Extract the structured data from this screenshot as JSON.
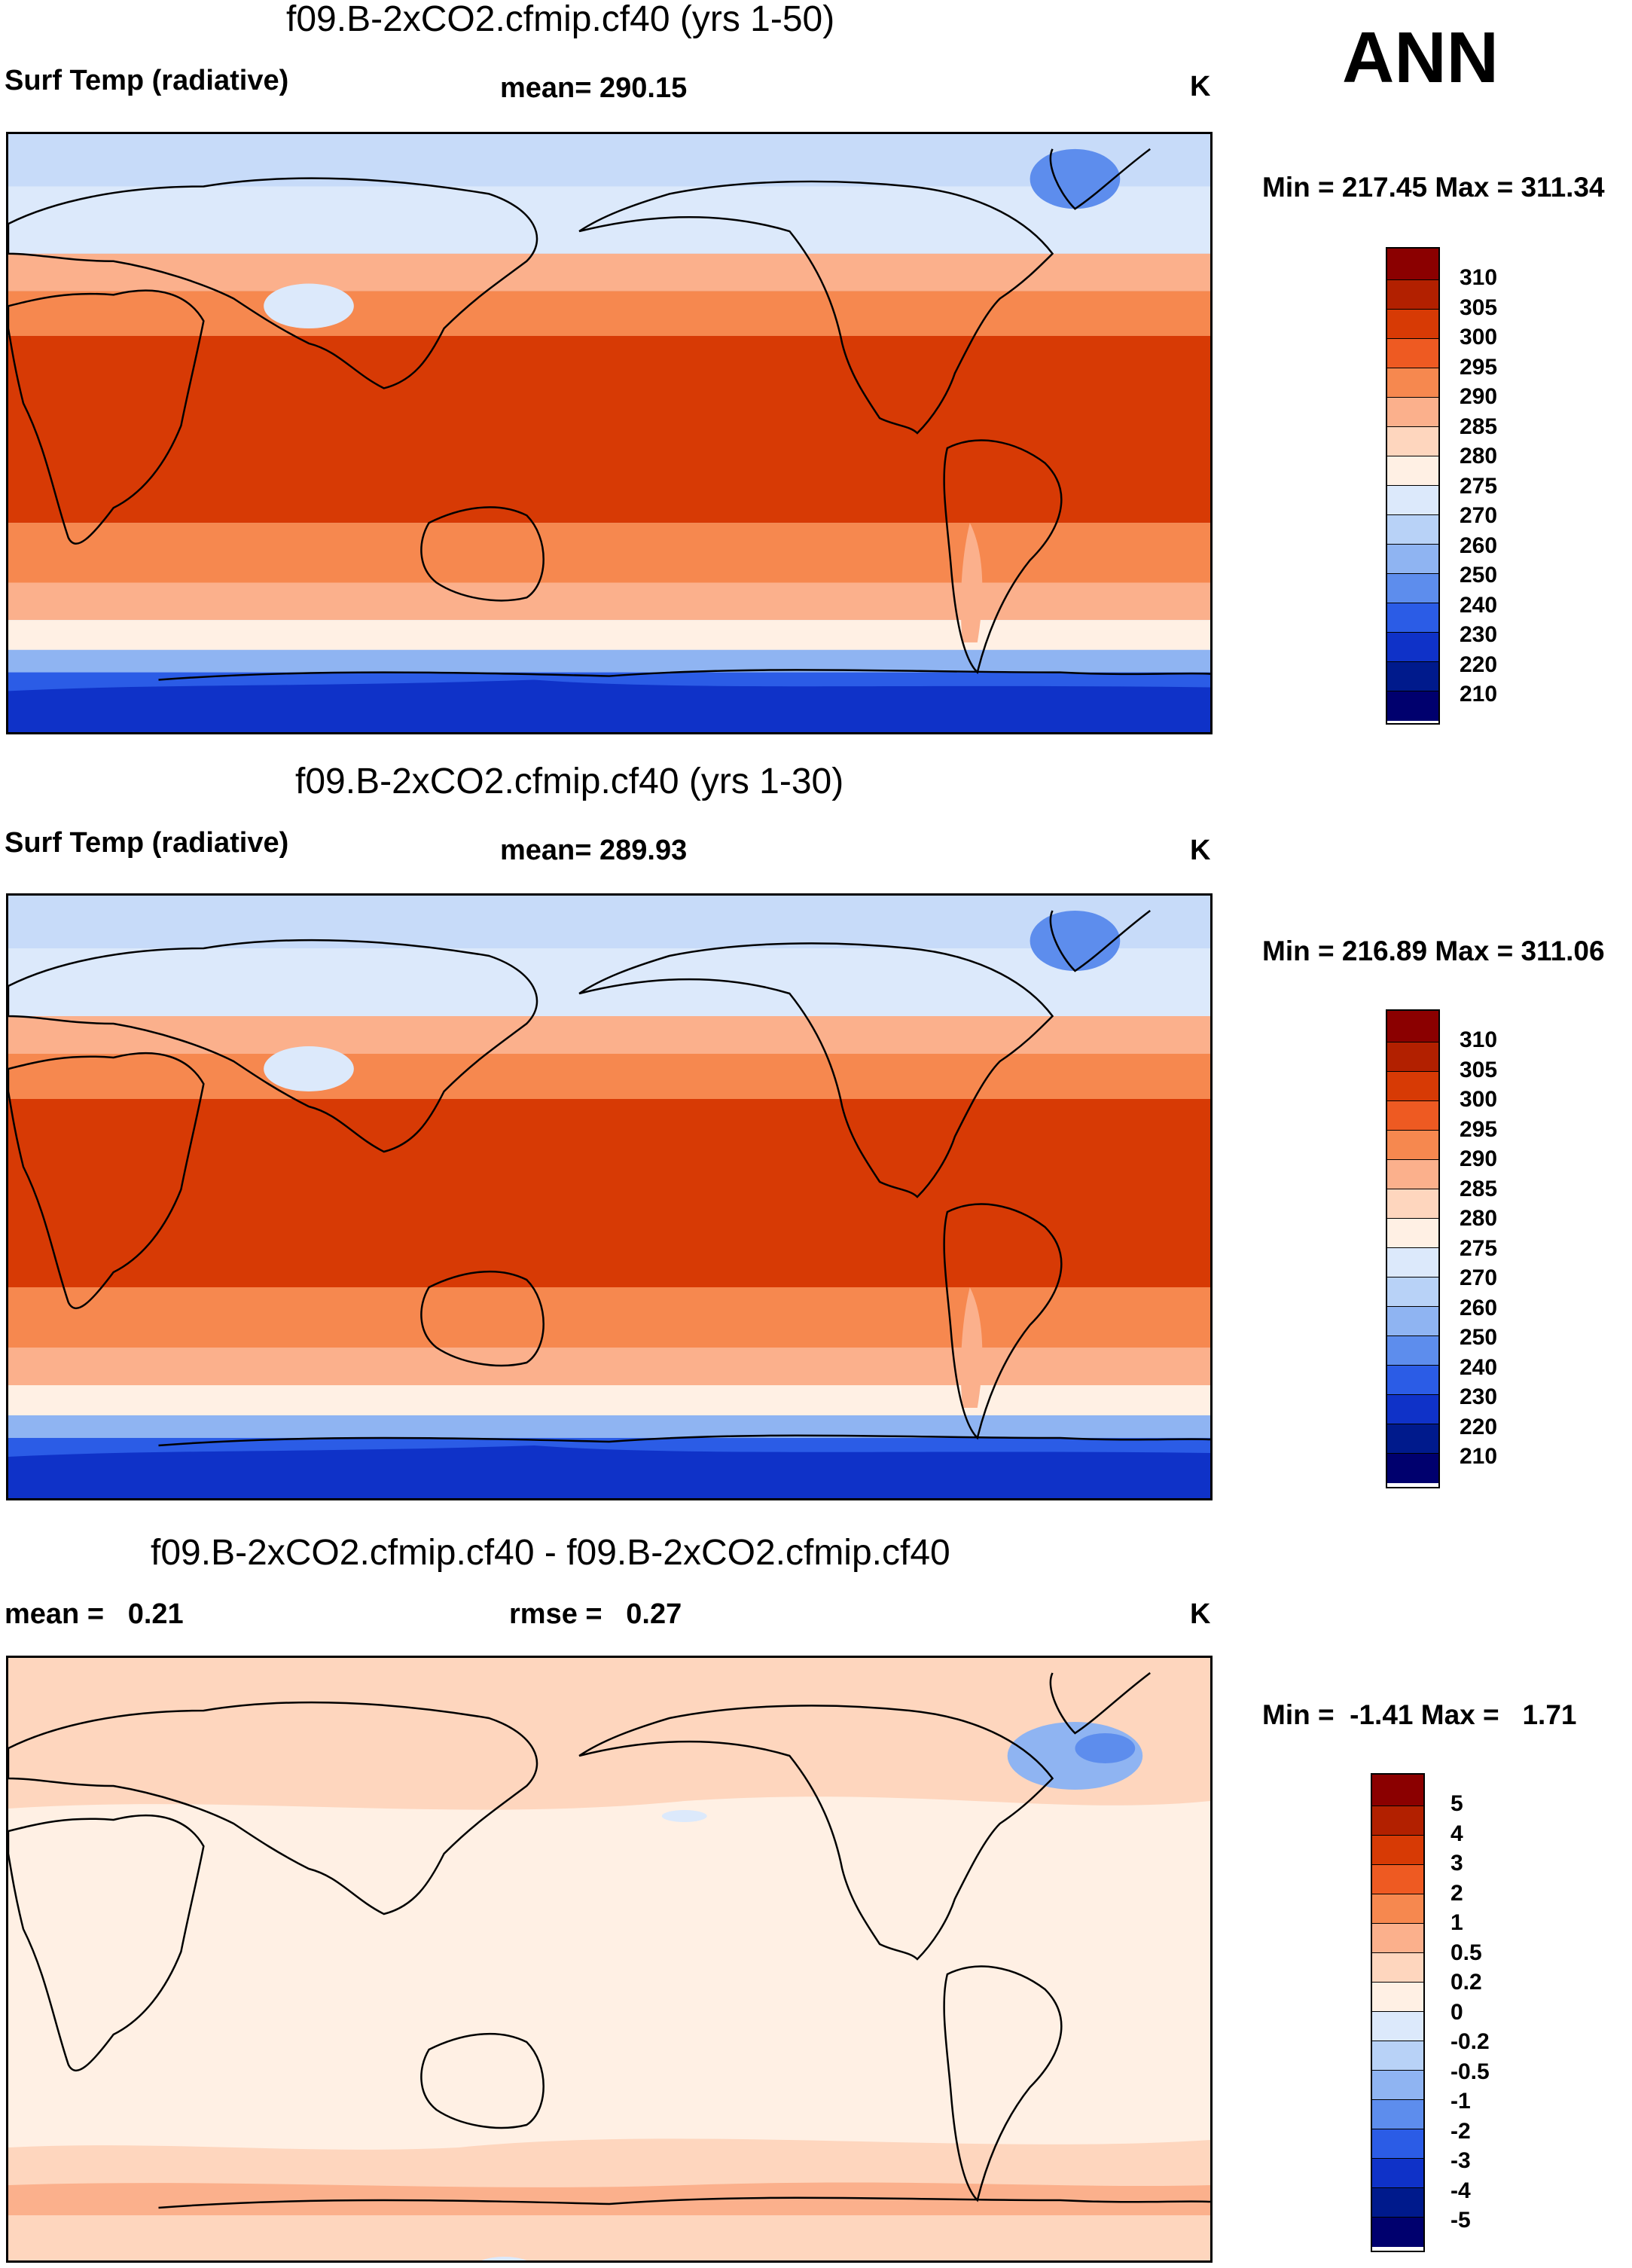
{
  "season": "ANN",
  "panels": [
    {
      "id": "p1",
      "title": "f09.B-2xCO2.cfmip.cf40 (yrs 1-50)",
      "left_label": "Surf Temp (radiative)",
      "mid_label": "mean= 290.15",
      "unit": "K",
      "minmax": "Min = 217.45 Max = 311.34",
      "levels": [
        "310",
        "305",
        "300",
        "295",
        "290",
        "285",
        "280",
        "275",
        "270",
        "260",
        "250",
        "240",
        "230",
        "220",
        "210"
      ],
      "colors": [
        "#8b0000",
        "#b22000",
        "#d73a05",
        "#ee5a22",
        "#f6884f",
        "#fbb08c",
        "#fed6be",
        "#fff0e4",
        "#dce9fb",
        "#b8d2f7",
        "#8fb4f2",
        "#5d8ded",
        "#2b5ce6",
        "#0f32c8",
        "#001a8c",
        "#00006e"
      ]
    },
    {
      "id": "p2",
      "title": "f09.B-2xCO2.cfmip.cf40 (yrs 1-30)",
      "left_label": "Surf Temp (radiative)",
      "mid_label": "mean= 289.93",
      "unit": "K",
      "minmax": "Min = 216.89 Max = 311.06",
      "levels": [
        "310",
        "305",
        "300",
        "295",
        "290",
        "285",
        "280",
        "275",
        "270",
        "260",
        "250",
        "240",
        "230",
        "220",
        "210"
      ],
      "colors": [
        "#8b0000",
        "#b22000",
        "#d73a05",
        "#ee5a22",
        "#f6884f",
        "#fbb08c",
        "#fed6be",
        "#fff0e4",
        "#dce9fb",
        "#b8d2f7",
        "#8fb4f2",
        "#5d8ded",
        "#2b5ce6",
        "#0f32c8",
        "#001a8c",
        "#00006e"
      ]
    },
    {
      "id": "p3",
      "title": "f09.B-2xCO2.cfmip.cf40 - f09.B-2xCO2.cfmip.cf40",
      "left_label": "mean =   0.21",
      "mid_label": "rmse =   0.27",
      "unit": "K",
      "minmax": "Min =  -1.41 Max =   1.71",
      "levels": [
        "5",
        "4",
        "3",
        "2",
        "1",
        "0.5",
        "0.2",
        "0",
        "-0.2",
        "-0.5",
        "-1",
        "-2",
        "-3",
        "-4",
        "-5"
      ],
      "colors": [
        "#8b0000",
        "#b22000",
        "#d73a05",
        "#ee5a22",
        "#f6884f",
        "#fbb08c",
        "#fed6be",
        "#fff0e4",
        "#dce9fb",
        "#b8d2f7",
        "#8fb4f2",
        "#5d8ded",
        "#2b5ce6",
        "#0f32c8",
        "#001a8c",
        "#00006e"
      ]
    }
  ]
}
